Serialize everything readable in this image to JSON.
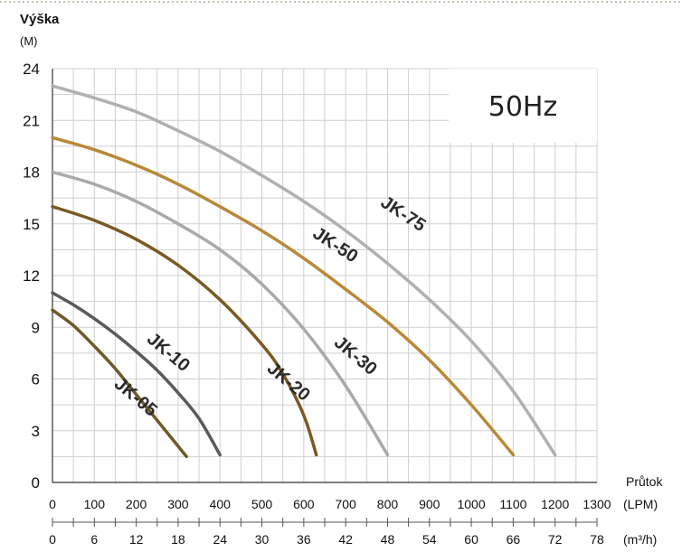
{
  "chart_data": {
    "type": "line",
    "ytitle": "Výška",
    "yunit": "(M)",
    "xtitle": "Průtok",
    "xunit_primary": "(LPM)",
    "xunit_secondary": "(m³/h)",
    "frequency_label": "50Hz",
    "xlim": [
      0,
      1300
    ],
    "ylim": [
      0,
      24
    ],
    "x2lim": [
      0,
      78
    ],
    "y_ticks": [
      0,
      3,
      6,
      9,
      12,
      15,
      18,
      21,
      24
    ],
    "x_ticks": [
      0,
      100,
      200,
      300,
      400,
      500,
      600,
      700,
      800,
      900,
      1000,
      1100,
      1200,
      1300
    ],
    "x2_ticks": [
      0,
      6,
      12,
      18,
      24,
      30,
      36,
      42,
      48,
      54,
      60,
      66,
      72,
      78
    ],
    "grid": true,
    "series": [
      {
        "name": "JK-05",
        "color": "#6e5a2a",
        "x": [
          0,
          50,
          100,
          150,
          200,
          250,
          300,
          320
        ],
        "y": [
          10.0,
          9.1,
          7.9,
          6.6,
          5.1,
          3.6,
          2.1,
          1.5
        ]
      },
      {
        "name": "JK-10",
        "color": "#5a5a5a",
        "x": [
          0,
          50,
          100,
          150,
          200,
          250,
          300,
          350,
          400
        ],
        "y": [
          11.0,
          10.3,
          9.5,
          8.6,
          7.6,
          6.5,
          5.2,
          3.7,
          1.6
        ]
      },
      {
        "name": "JK-20",
        "color": "#7a5a24",
        "x": [
          0,
          100,
          200,
          300,
          400,
          500,
          550,
          600,
          630
        ],
        "y": [
          16.0,
          15.2,
          14.1,
          12.6,
          10.6,
          8.0,
          6.3,
          3.9,
          1.6
        ]
      },
      {
        "name": "JK-30",
        "color": "#a9a9a9",
        "x": [
          0,
          100,
          200,
          300,
          400,
          500,
          600,
          700,
          800
        ],
        "y": [
          18.0,
          17.3,
          16.3,
          15.0,
          13.5,
          11.5,
          8.9,
          5.6,
          1.6
        ]
      },
      {
        "name": "JK-50",
        "color": "#b8893a",
        "x": [
          0,
          100,
          200,
          300,
          400,
          500,
          600,
          700,
          800,
          900,
          1000,
          1100
        ],
        "y": [
          20.0,
          19.3,
          18.4,
          17.3,
          16.0,
          14.6,
          13.0,
          11.2,
          9.3,
          7.1,
          4.5,
          1.6
        ]
      },
      {
        "name": "JK-75",
        "color": "#b0b0b0",
        "x": [
          0,
          100,
          200,
          300,
          400,
          500,
          600,
          700,
          800,
          900,
          1000,
          1100,
          1200
        ],
        "y": [
          23.0,
          22.3,
          21.5,
          20.4,
          19.2,
          17.8,
          16.3,
          14.6,
          12.7,
          10.6,
          8.2,
          5.3,
          1.6
        ]
      }
    ]
  }
}
